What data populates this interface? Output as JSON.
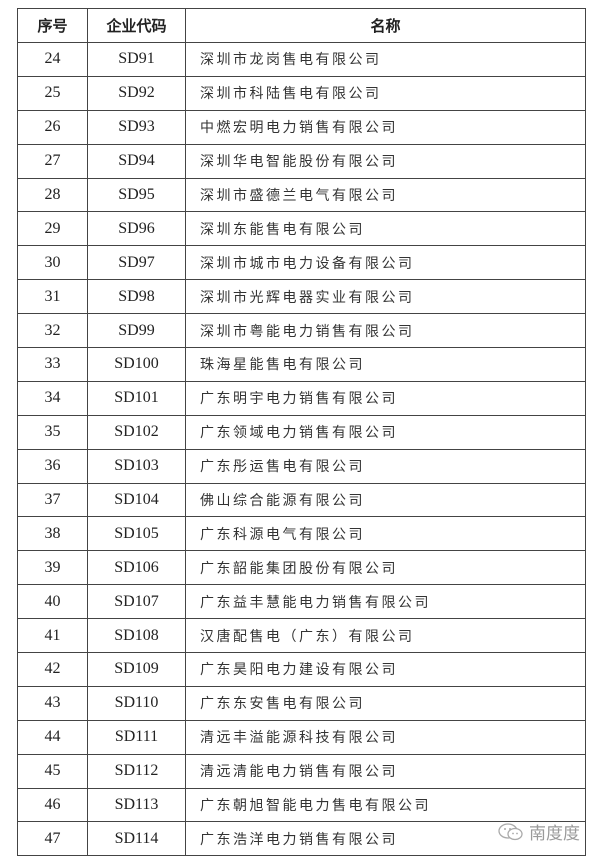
{
  "table": {
    "headers": [
      "序号",
      "企业代码",
      "名称"
    ],
    "rows": [
      {
        "no": "24",
        "code": "SD91",
        "name": "深圳市龙岗售电有限公司"
      },
      {
        "no": "25",
        "code": "SD92",
        "name": "深圳市科陆售电有限公司"
      },
      {
        "no": "26",
        "code": "SD93",
        "name": "中燃宏明电力销售有限公司"
      },
      {
        "no": "27",
        "code": "SD94",
        "name": "深圳华电智能股份有限公司"
      },
      {
        "no": "28",
        "code": "SD95",
        "name": "深圳市盛德兰电气有限公司"
      },
      {
        "no": "29",
        "code": "SD96",
        "name": "深圳东能售电有限公司"
      },
      {
        "no": "30",
        "code": "SD97",
        "name": "深圳市城市电力设备有限公司"
      },
      {
        "no": "31",
        "code": "SD98",
        "name": "深圳市光辉电器实业有限公司"
      },
      {
        "no": "32",
        "code": "SD99",
        "name": "深圳市粤能电力销售有限公司"
      },
      {
        "no": "33",
        "code": "SD100",
        "name": "珠海星能售电有限公司"
      },
      {
        "no": "34",
        "code": "SD101",
        "name": "广东明宇电力销售有限公司"
      },
      {
        "no": "35",
        "code": "SD102",
        "name": "广东领域电力销售有限公司"
      },
      {
        "no": "36",
        "code": "SD103",
        "name": "广东彤运售电有限公司"
      },
      {
        "no": "37",
        "code": "SD104",
        "name": "佛山综合能源有限公司"
      },
      {
        "no": "38",
        "code": "SD105",
        "name": "广东科源电气有限公司"
      },
      {
        "no": "39",
        "code": "SD106",
        "name": "广东韶能集团股份有限公司"
      },
      {
        "no": "40",
        "code": "SD107",
        "name": "广东益丰慧能电力销售有限公司"
      },
      {
        "no": "41",
        "code": "SD108",
        "name": "汉唐配售电（广东）有限公司"
      },
      {
        "no": "42",
        "code": "SD109",
        "name": "广东昊阳电力建设有限公司"
      },
      {
        "no": "43",
        "code": "SD110",
        "name": "广东东安售电有限公司"
      },
      {
        "no": "44",
        "code": "SD111",
        "name": "清远丰溢能源科技有限公司"
      },
      {
        "no": "45",
        "code": "SD112",
        "name": "清远清能电力销售有限公司"
      },
      {
        "no": "46",
        "code": "SD113",
        "name": "广东朝旭智能电力售电有限公司"
      },
      {
        "no": "47",
        "code": "SD114",
        "name": "广东浩洋电力销售有限公司"
      }
    ]
  },
  "watermark": {
    "icon": "wechat-icon",
    "text": "南度度"
  }
}
